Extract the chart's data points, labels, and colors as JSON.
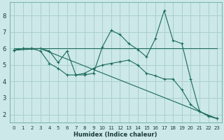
{
  "xlabel": "Humidex (Indice chaleur)",
  "ylabel": "",
  "background_color": "#cce8e8",
  "grid_color": "#aacfcf",
  "line_color": "#1a6b5a",
  "xlim": [
    -0.5,
    23.5
  ],
  "ylim": [
    1.5,
    8.8
  ],
  "yticks": [
    2,
    3,
    4,
    5,
    6,
    7,
    8
  ],
  "xticks": [
    0,
    1,
    2,
    3,
    4,
    5,
    6,
    7,
    8,
    9,
    10,
    11,
    12,
    13,
    14,
    15,
    16,
    17,
    18,
    19,
    20,
    21,
    22,
    23
  ],
  "line1_x": [
    0,
    23
  ],
  "line1_y": [
    6.0,
    6.0
  ],
  "line2_x": [
    0,
    1,
    2,
    3,
    4,
    5,
    6,
    7,
    8,
    9,
    10,
    11,
    12,
    13,
    14,
    15,
    16,
    17,
    18,
    19,
    20,
    21,
    22,
    23
  ],
  "line2_y": [
    5.9,
    6.0,
    6.0,
    6.0,
    5.85,
    5.15,
    5.85,
    4.4,
    4.4,
    4.5,
    6.1,
    7.1,
    6.85,
    6.3,
    5.95,
    5.5,
    6.6,
    8.3,
    6.5,
    6.3,
    4.15,
    2.2,
    1.9,
    1.75
  ],
  "line3_x": [
    0,
    1,
    2,
    3,
    4,
    5,
    6,
    7,
    8,
    9,
    10,
    11,
    12,
    13,
    14,
    15,
    16,
    17,
    18,
    19,
    20,
    21,
    22,
    23
  ],
  "line3_y": [
    5.9,
    6.0,
    6.0,
    5.85,
    5.1,
    4.8,
    4.4,
    4.4,
    4.5,
    4.8,
    5.0,
    5.1,
    5.2,
    5.3,
    5.0,
    4.5,
    4.35,
    4.15,
    4.15,
    3.5,
    2.6,
    2.2,
    1.9,
    1.75
  ],
  "line4_x": [
    0,
    3,
    23
  ],
  "line4_y": [
    5.9,
    6.0,
    1.75
  ],
  "xlabel_fontsize": 6,
  "tick_fontsize_x": 5,
  "tick_fontsize_y": 6
}
